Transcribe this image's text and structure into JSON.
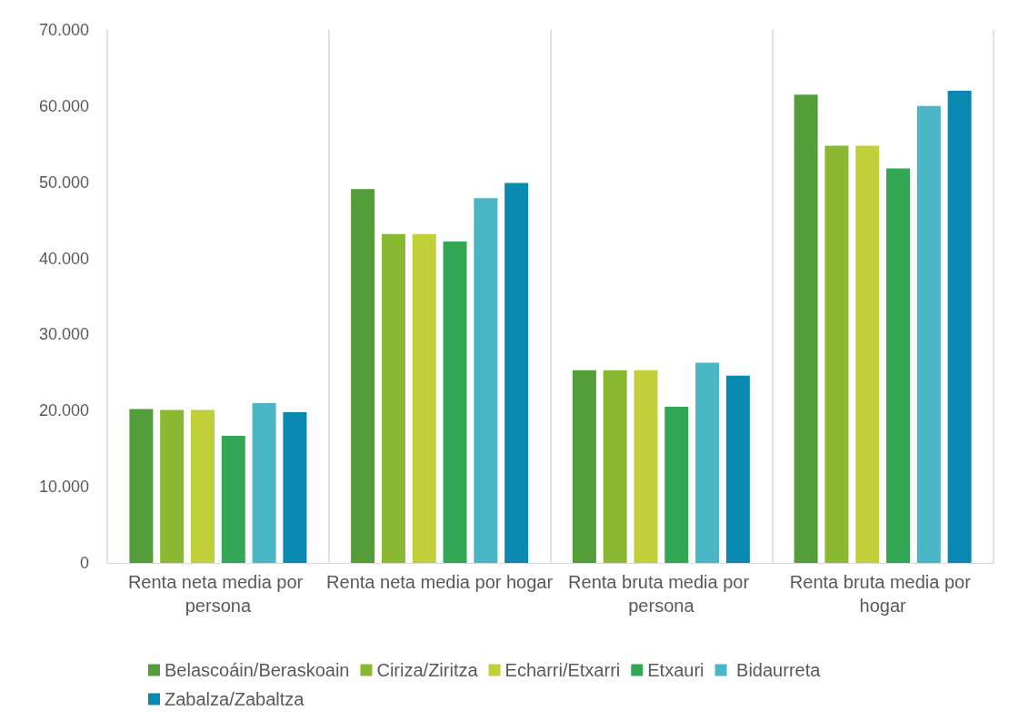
{
  "chart_data": {
    "type": "bar",
    "categories": [
      "Renta neta media por persona",
      "Renta neta media por hogar",
      "Renta bruta media por persona",
      "Renta bruta media por hogar"
    ],
    "series": [
      {
        "name": "Belascoáin/Beraskoain",
        "color": "#549e39",
        "values": [
          20200,
          49100,
          25300,
          61500
        ]
      },
      {
        "name": "Ciriza/Ziritza",
        "color": "#8ab833",
        "values": [
          20100,
          43200,
          25300,
          54800
        ]
      },
      {
        "name": "Echarri/Etxarri",
        "color": "#c0cf3a",
        "values": [
          20100,
          43200,
          25300,
          54800
        ]
      },
      {
        "name": "Etxauri",
        "color": "#33a756",
        "values": [
          16700,
          42200,
          20500,
          51800
        ]
      },
      {
        "name": " Bidaurreta",
        "color": "#4ab5c4",
        "values": [
          21000,
          47900,
          26300,
          60000
        ]
      },
      {
        "name": "Zabalza/Zabaltza",
        "color": "#0989b1",
        "values": [
          19800,
          49900,
          24600,
          62000
        ]
      }
    ],
    "ylim": [
      0,
      70000
    ],
    "yticks": [
      {
        "value": 0,
        "label": "0"
      },
      {
        "value": 10000,
        "label": "10.000"
      },
      {
        "value": 20000,
        "label": "20.000"
      },
      {
        "value": 30000,
        "label": "30.000"
      },
      {
        "value": 40000,
        "label": "40.000"
      },
      {
        "value": 50000,
        "label": "50.000"
      },
      {
        "value": 60000,
        "label": "60.000"
      },
      {
        "value": 70000,
        "label": "70.000"
      }
    ],
    "grid": "x",
    "legend": "bottom"
  }
}
